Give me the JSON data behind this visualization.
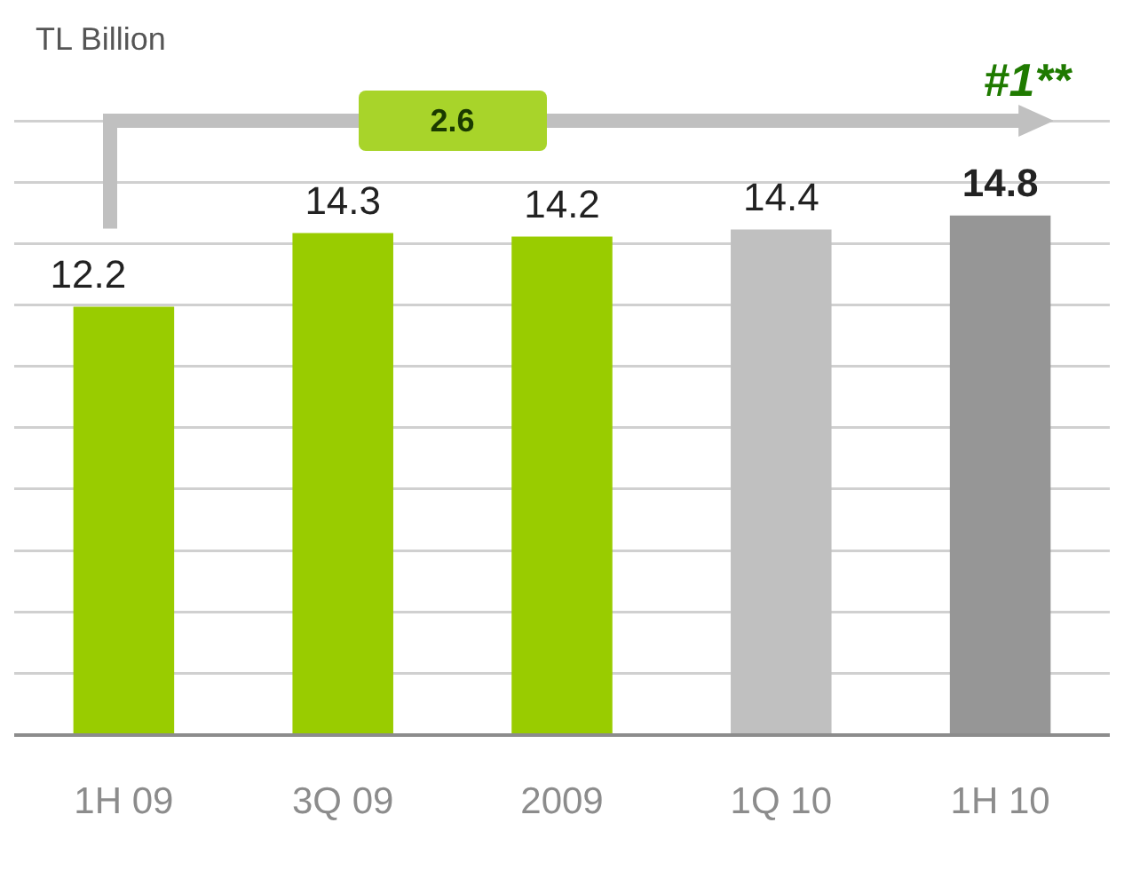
{
  "chart_data": {
    "type": "bar",
    "categories": [
      "1H 09",
      "3Q 09",
      "2009",
      "1Q 10",
      "1H 10"
    ],
    "values": [
      12.2,
      14.3,
      14.2,
      14.4,
      14.8
    ],
    "colors": [
      "#99cc00",
      "#99cc00",
      "#99cc00",
      "#c0c0c0",
      "#969696"
    ],
    "ylim": [
      0,
      17.5
    ],
    "yticks": [
      {
        "value": 0,
        "label": null
      },
      {
        "value": 1.75,
        "label": null
      },
      {
        "value": 3.5,
        "label": null
      },
      {
        "value": 5.25,
        "label": null
      },
      {
        "value": 7,
        "label": null
      },
      {
        "value": 8.75,
        "label": null
      },
      {
        "value": 10.5,
        "label": null
      },
      {
        "value": 12.25,
        "label": null
      },
      {
        "value": 14,
        "label": null
      },
      {
        "value": 15.75,
        "label": null
      },
      {
        "value": 17.5,
        "label": null
      }
    ],
    "grid": "y",
    "tick_labels": "x",
    "data_labels": true,
    "legend": false,
    "annotations": [
      "TL Billion",
      "2.6",
      "#1**"
    ]
  }
}
